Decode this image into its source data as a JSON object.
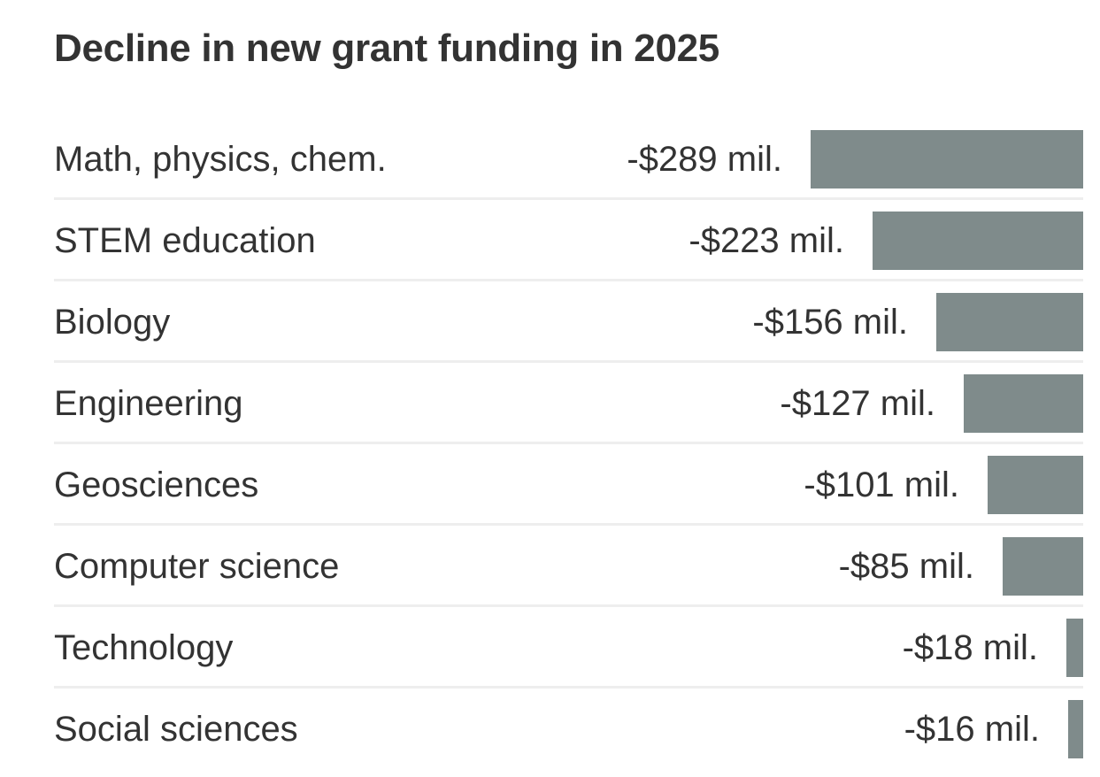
{
  "chart_data": {
    "type": "bar",
    "orientation": "horizontal",
    "title": "Decline in new grant funding in 2025",
    "categories": [
      "Math, physics, chem.",
      "STEM education",
      "Biology",
      "Engineering",
      "Geosciences",
      "Computer science",
      "Technology",
      "Social sciences"
    ],
    "values": [
      -289,
      -223,
      -156,
      -127,
      -101,
      -85,
      -18,
      -16
    ],
    "value_labels": [
      "-$289 mil.",
      "-$223 mil.",
      "-$156 mil.",
      "-$127 mil.",
      "-$101 mil.",
      "-$85 mil.",
      "-$18 mil.",
      "-$16 mil."
    ],
    "unit": "mil.",
    "xlim": [
      -289,
      0
    ],
    "grid": false,
    "legend": false,
    "bar_color": "#7f8b8b"
  }
}
